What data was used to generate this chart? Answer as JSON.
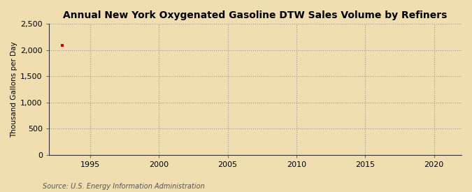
{
  "title": "Annual New York Oxygenated Gasoline DTW Sales Volume by Refiners",
  "ylabel": "Thousand Gallons per Day",
  "source": "Source: U.S. Energy Information Administration",
  "background_color": "#f0deb0",
  "plot_background_color": "#f0deb0",
  "data_x": [
    1993
  ],
  "data_y": [
    2090
  ],
  "data_color": "#cc0000",
  "xlim": [
    1992,
    2022
  ],
  "ylim": [
    0,
    2500
  ],
  "xticks": [
    1995,
    2000,
    2005,
    2010,
    2015,
    2020
  ],
  "yticks": [
    0,
    500,
    1000,
    1500,
    2000,
    2500
  ],
  "title_fontsize": 10,
  "label_fontsize": 7.5,
  "tick_fontsize": 8,
  "source_fontsize": 7
}
